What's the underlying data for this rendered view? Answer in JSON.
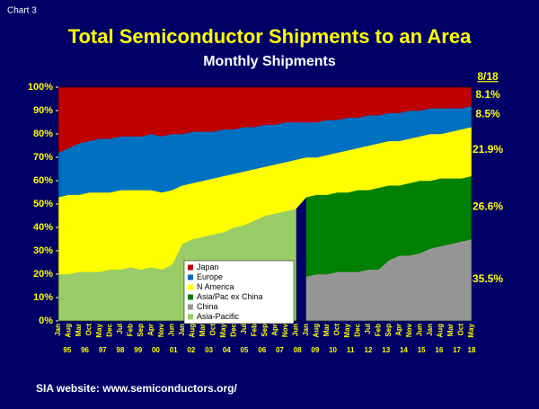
{
  "chart_label": "Chart 3",
  "footer": "SIA website:  www.semiconductors.org/",
  "chart_data": {
    "type": "stacked_area",
    "title": "Total Semiconductor Shipments to an Area",
    "subtitle": "Monthly Shipments",
    "categories": [
      "Jan",
      "Aug",
      "Mar",
      "Oct",
      "May",
      "Dec",
      "Jul",
      "Feb",
      "Sep",
      "Apr",
      "Nov",
      "Jun",
      "Jan",
      "Aug",
      "Mar",
      "Oct",
      "May",
      "Dec",
      "Jul",
      "Feb",
      "Sep",
      "Apr",
      "Nov",
      "Jun",
      "Jan",
      "Aug",
      "Mar",
      "Oct",
      "May",
      "Dec",
      "Jul",
      "Feb",
      "Sep",
      "Apr",
      "Nov",
      "Jun",
      "Jan",
      "Aug",
      "Mar",
      "Oct",
      "May"
    ],
    "years": [
      "95",
      "96",
      "97",
      "98",
      "99",
      "00",
      "01",
      "02",
      "03",
      "04",
      "05",
      "06",
      "07",
      "08",
      "09",
      "10",
      "11",
      "12",
      "13",
      "14",
      "15",
      "16",
      "17",
      "18"
    ],
    "ylim": [
      0,
      100
    ],
    "yticks": [
      {
        "value": 0,
        "label": "0%"
      },
      {
        "value": 10,
        "label": "10%"
      },
      {
        "value": 20,
        "label": "20%"
      },
      {
        "value": 30,
        "label": "30%"
      },
      {
        "value": 40,
        "label": "40%"
      },
      {
        "value": 50,
        "label": "50%"
      },
      {
        "value": 60,
        "label": "60%"
      },
      {
        "value": 70,
        "label": "70%"
      },
      {
        "value": 80,
        "label": "80%"
      },
      {
        "value": 90,
        "label": "90%"
      },
      {
        "value": 100,
        "label": "100%"
      }
    ],
    "latest_label": "8/18",
    "series": [
      {
        "name": "Asia-Pacific",
        "color": "#99cc66",
        "values": [
          20,
          20,
          21,
          21,
          21,
          22,
          22,
          23,
          22,
          23,
          22,
          24,
          33,
          35,
          36,
          37,
          38,
          40,
          41,
          43,
          45,
          46,
          47,
          48,
          null,
          null,
          null,
          null,
          null,
          null,
          null,
          null,
          null,
          null,
          null,
          null,
          null,
          null,
          null,
          null,
          null
        ]
      },
      {
        "name": "China",
        "color": "#969696",
        "latest": 35.5,
        "latest_value_label": "35.5%",
        "values": [
          null,
          null,
          null,
          null,
          null,
          null,
          null,
          null,
          null,
          null,
          null,
          null,
          null,
          null,
          null,
          null,
          null,
          null,
          null,
          null,
          null,
          null,
          null,
          null,
          19,
          20,
          20,
          21,
          21,
          21,
          22,
          22,
          26,
          28,
          28,
          29,
          31,
          32,
          33,
          34,
          35
        ]
      },
      {
        "name": "Asia/Pac ex China",
        "color": "#008000",
        "latest": 26.6,
        "latest_value_label": "26.6%",
        "values": [
          null,
          null,
          null,
          null,
          null,
          null,
          null,
          null,
          null,
          null,
          null,
          null,
          null,
          null,
          null,
          null,
          null,
          null,
          null,
          null,
          null,
          null,
          null,
          null,
          34,
          34,
          34,
          34,
          34,
          35,
          34,
          35,
          32,
          30,
          31,
          31,
          29,
          29,
          28,
          27,
          27
        ]
      },
      {
        "name": "N America",
        "color": "#ffff00",
        "latest": 21.9,
        "latest_value_label": "21.9%",
        "values": [
          33,
          34,
          33,
          34,
          34,
          33,
          34,
          33,
          34,
          33,
          33,
          32,
          25,
          24,
          24,
          24,
          24,
          23,
          23,
          22,
          21,
          21,
          21,
          21,
          17,
          16,
          17,
          17,
          18,
          18,
          19,
          19,
          19,
          19,
          19,
          19,
          20,
          19,
          20,
          21,
          21
        ]
      },
      {
        "name": "Europe",
        "color": "#0070c0",
        "latest": 8.5,
        "latest_value_label": "8.5%",
        "values": [
          19,
          20,
          22,
          22,
          23,
          23,
          23,
          23,
          23,
          24,
          24,
          24,
          22,
          22,
          21,
          20,
          20,
          19,
          19,
          18,
          18,
          17,
          17,
          16,
          15,
          15,
          15,
          14,
          14,
          13,
          13,
          12,
          12,
          12,
          12,
          11,
          11,
          11,
          10,
          9,
          9
        ]
      },
      {
        "name": "Japan",
        "color": "#c00000",
        "latest": 8.1,
        "latest_value_label": "8.1%",
        "values": [
          28,
          26,
          24,
          23,
          22,
          22,
          21,
          21,
          21,
          20,
          21,
          20,
          20,
          19,
          19,
          19,
          18,
          18,
          17,
          17,
          16,
          16,
          15,
          15,
          15,
          15,
          14,
          14,
          13,
          13,
          12,
          12,
          11,
          11,
          10,
          10,
          9,
          9,
          9,
          9,
          8
        ]
      }
    ]
  }
}
